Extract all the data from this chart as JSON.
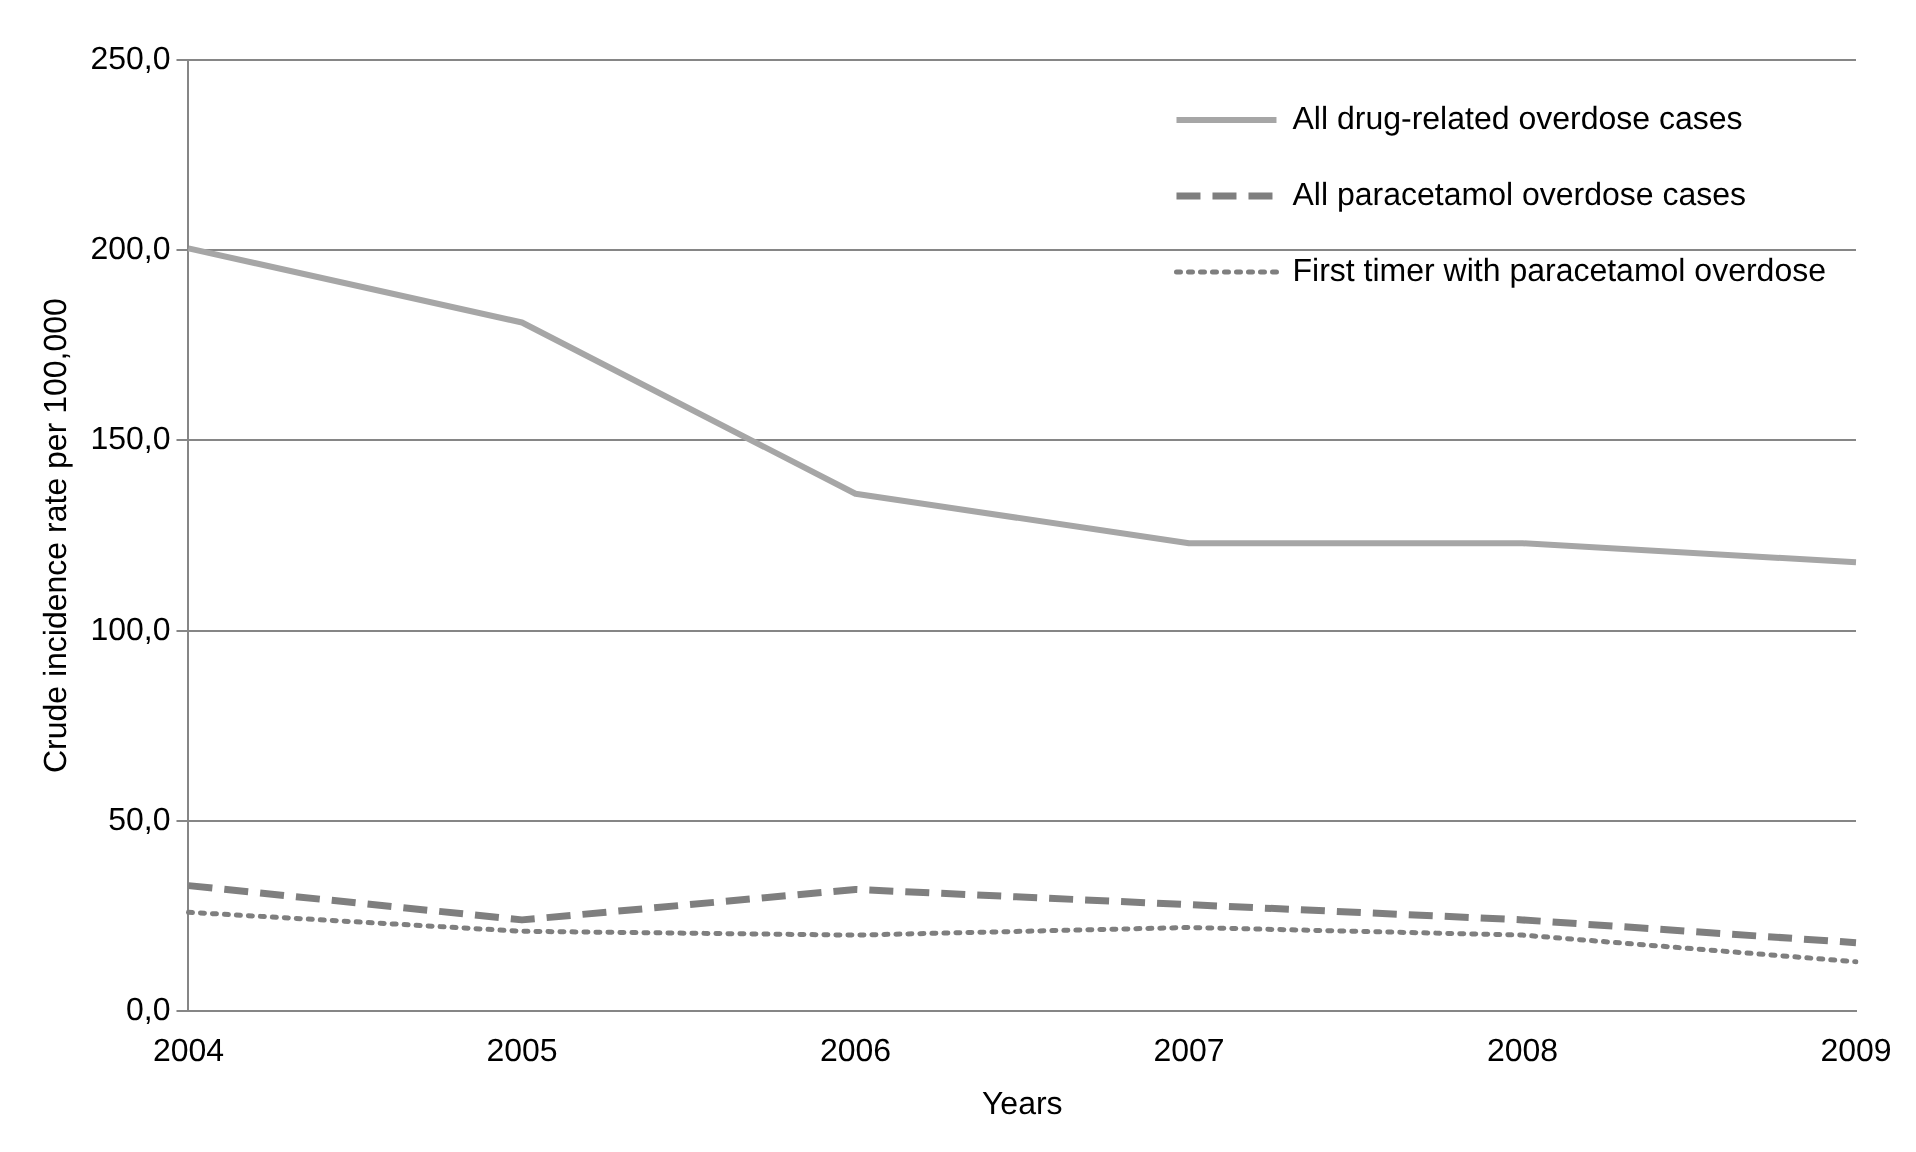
{
  "chart_data": {
    "type": "line",
    "xlabel": "Years",
    "ylabel": "Crude incidence rate per 100,000",
    "categories": [
      "2004",
      "2005",
      "2006",
      "2007",
      "2008",
      "2009"
    ],
    "series": [
      {
        "name": "All drug-related overdose cases",
        "color": "#a6a6a6",
        "line_style": "solid",
        "values": [
          200.5,
          181,
          136,
          123,
          123,
          118
        ]
      },
      {
        "name": "All paracetamol overdose cases",
        "color": "#7f7f7f",
        "line_style": "dashed",
        "values": [
          33,
          24,
          32,
          28,
          24,
          18
        ]
      },
      {
        "name": "First timer with paracetamol overdose",
        "color": "#7f7f7f",
        "line_style": "dotted",
        "values": [
          26,
          21,
          20,
          22,
          20,
          13
        ]
      }
    ],
    "ylim": [
      0,
      250
    ],
    "yticks": [
      {
        "value": 0,
        "label": "0,0"
      },
      {
        "value": 50,
        "label": "50,0"
      },
      {
        "value": 100,
        "label": "100,0"
      },
      {
        "value": 150,
        "label": "150,0"
      },
      {
        "value": 200,
        "label": "200,0"
      },
      {
        "value": 250,
        "label": "250,0"
      }
    ],
    "grid": "y",
    "legend": "top right",
    "marker": "none"
  }
}
